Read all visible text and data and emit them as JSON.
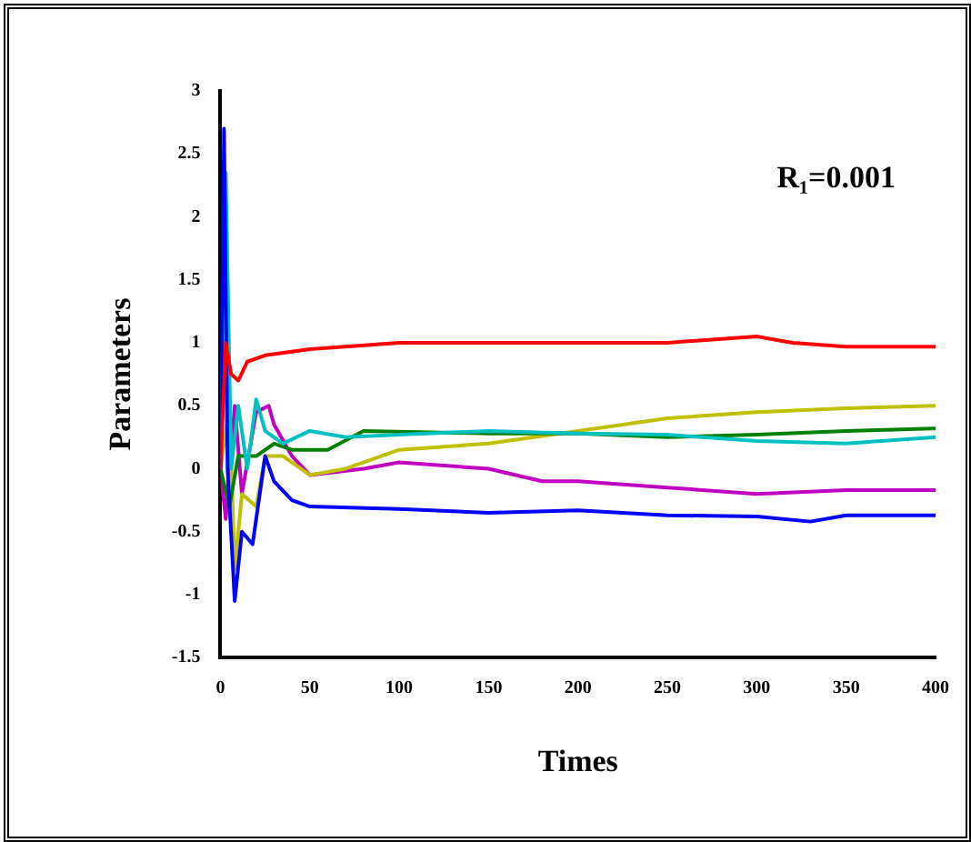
{
  "chart_data": {
    "type": "line",
    "xlabel": "Times",
    "ylabel": "Parameters",
    "annotations": [
      "R₁=0.001"
    ],
    "xlim": [
      0,
      400
    ],
    "xticks": [
      0,
      50,
      100,
      150,
      200,
      250,
      300,
      350,
      400
    ],
    "ylim": [
      -1.5,
      3
    ],
    "yticks": [
      -1.5,
      -1,
      -0.5,
      0,
      0.5,
      1,
      1.5,
      2,
      2.5,
      3
    ],
    "grid": false,
    "legend": false,
    "marker": "none",
    "line_style": "solid",
    "series": [
      {
        "color": "#ff0000",
        "x": [
          0,
          3,
          6,
          10,
          15,
          25,
          50,
          100,
          150,
          200,
          250,
          300,
          320,
          350,
          400
        ],
        "values": [
          0,
          1.0,
          0.75,
          0.7,
          0.85,
          0.9,
          0.95,
          1.0,
          1.0,
          1.0,
          1.0,
          1.05,
          1.0,
          0.97,
          0.97
        ]
      },
      {
        "color": "#0000ff",
        "x": [
          0,
          2,
          4,
          8,
          12,
          18,
          25,
          30,
          40,
          50,
          100,
          150,
          200,
          250,
          300,
          330,
          350,
          400
        ],
        "values": [
          0,
          2.7,
          0,
          -1.05,
          -0.5,
          -0.6,
          0.1,
          -0.1,
          -0.25,
          -0.3,
          -0.32,
          -0.35,
          -0.33,
          -0.37,
          -0.38,
          -0.42,
          -0.37,
          -0.37
        ]
      },
      {
        "color": "#00c0c0",
        "x": [
          0,
          3,
          6,
          10,
          15,
          20,
          25,
          35,
          50,
          70,
          100,
          150,
          200,
          250,
          300,
          350,
          400
        ],
        "values": [
          0,
          2.35,
          0,
          0.5,
          0,
          0.55,
          0.3,
          0.2,
          0.3,
          0.25,
          0.27,
          0.3,
          0.28,
          0.27,
          0.22,
          0.2,
          0.25
        ]
      },
      {
        "color": "#008000",
        "x": [
          0,
          5,
          10,
          20,
          30,
          40,
          60,
          80,
          150,
          200,
          250,
          300,
          350,
          400
        ],
        "values": [
          0,
          -0.3,
          0.1,
          0.1,
          0.2,
          0.15,
          0.15,
          0.3,
          0.28,
          0.28,
          0.25,
          0.27,
          0.3,
          0.32
        ]
      },
      {
        "color": "#c0c000",
        "x": [
          0,
          5,
          8,
          12,
          20,
          25,
          35,
          50,
          70,
          100,
          150,
          200,
          250,
          300,
          350,
          400
        ],
        "values": [
          0,
          0.5,
          -0.8,
          -0.2,
          -0.3,
          0.1,
          0.1,
          -0.05,
          0,
          0.15,
          0.2,
          0.3,
          0.4,
          0.45,
          0.48,
          0.5
        ]
      },
      {
        "color": "#c000c0",
        "x": [
          0,
          3,
          8,
          12,
          20,
          27,
          30,
          40,
          50,
          80,
          100,
          150,
          180,
          200,
          250,
          300,
          350,
          400
        ],
        "values": [
          0,
          -0.4,
          0.5,
          -0.2,
          0.45,
          0.5,
          0.35,
          0.1,
          -0.05,
          0,
          0.05,
          0,
          -0.1,
          -0.1,
          -0.15,
          -0.2,
          -0.17,
          -0.17
        ]
      }
    ]
  }
}
